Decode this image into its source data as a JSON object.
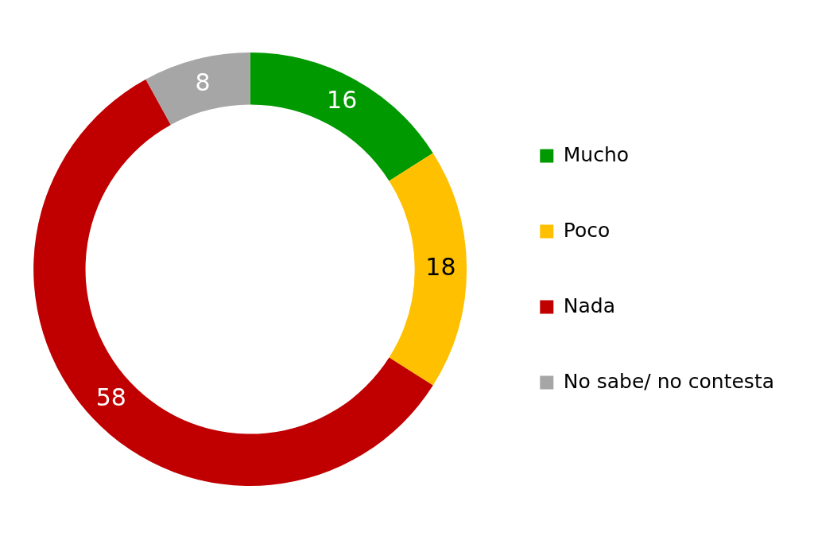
{
  "chart_data": {
    "type": "donut",
    "categories": [
      "Mucho",
      "Poco",
      "Nada",
      "No sabe/ no contesta"
    ],
    "values": [
      16,
      18,
      58,
      8
    ],
    "colors": [
      "#009900",
      "#ffc000",
      "#c00000",
      "#a6a6a6"
    ],
    "data_labels": true,
    "legend": "right"
  }
}
